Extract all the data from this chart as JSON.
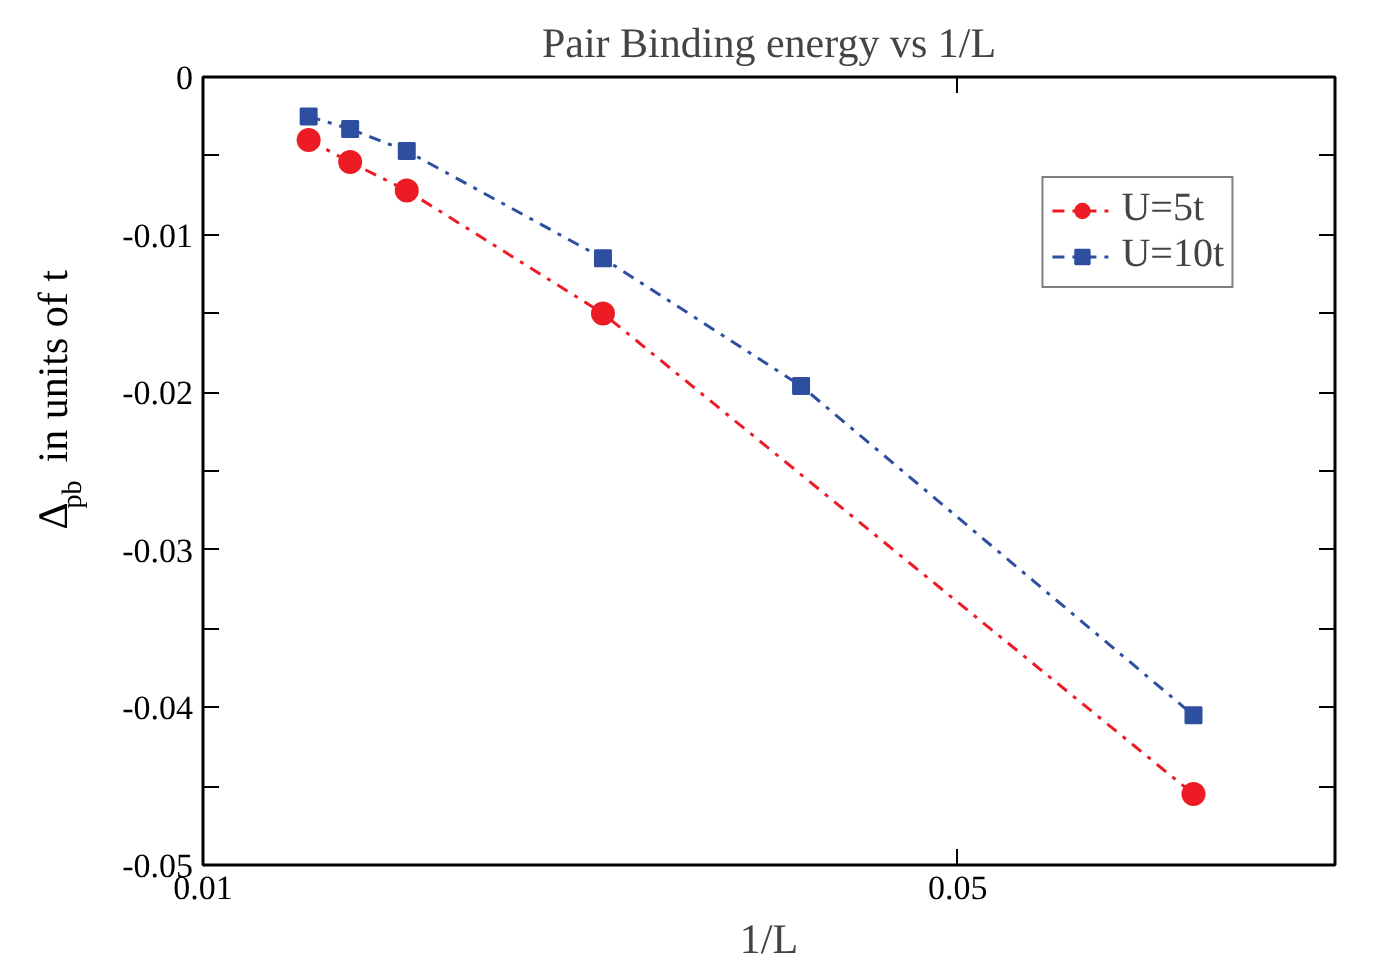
{
  "chart_data": {
    "type": "line",
    "title": "Pair Binding energy vs 1/L",
    "xlabel": "1/L",
    "ylabel": "Δ$_{pb}$ in units of t",
    "xlim": [
      0.01,
      0.07
    ],
    "xticks": [
      0.01,
      0.05
    ],
    "ylim": [
      -0.05,
      0
    ],
    "yticks": [
      0,
      {
        "value": -0.005,
        "label": null
      },
      -0.01,
      {
        "value": -0.015,
        "label": null
      },
      -0.02,
      {
        "value": -0.025,
        "label": null
      },
      -0.03,
      {
        "value": -0.035,
        "label": null
      },
      -0.04,
      {
        "value": -0.045,
        "label": null
      },
      -0.05
    ],
    "grid": false,
    "legend": "top right",
    "line_style": "dashdot",
    "series": [
      {
        "name": "U=5t",
        "color": "#ed1c24",
        "marker": "circle",
        "x": [
          0.0156,
          0.0178,
          0.0208,
          0.0312,
          0.0625
        ],
        "values": [
          -0.004,
          -0.0054,
          -0.0072,
          -0.015,
          -0.0455
        ]
      },
      {
        "name": "U=10t",
        "color": "#2e4ea0",
        "marker": "square",
        "x": [
          0.0156,
          0.0178,
          0.0208,
          0.0312,
          0.0417,
          0.0625
        ],
        "values": [
          -0.0025,
          -0.0033,
          -0.0047,
          -0.0115,
          -0.0196,
          -0.0405
        ]
      }
    ]
  }
}
